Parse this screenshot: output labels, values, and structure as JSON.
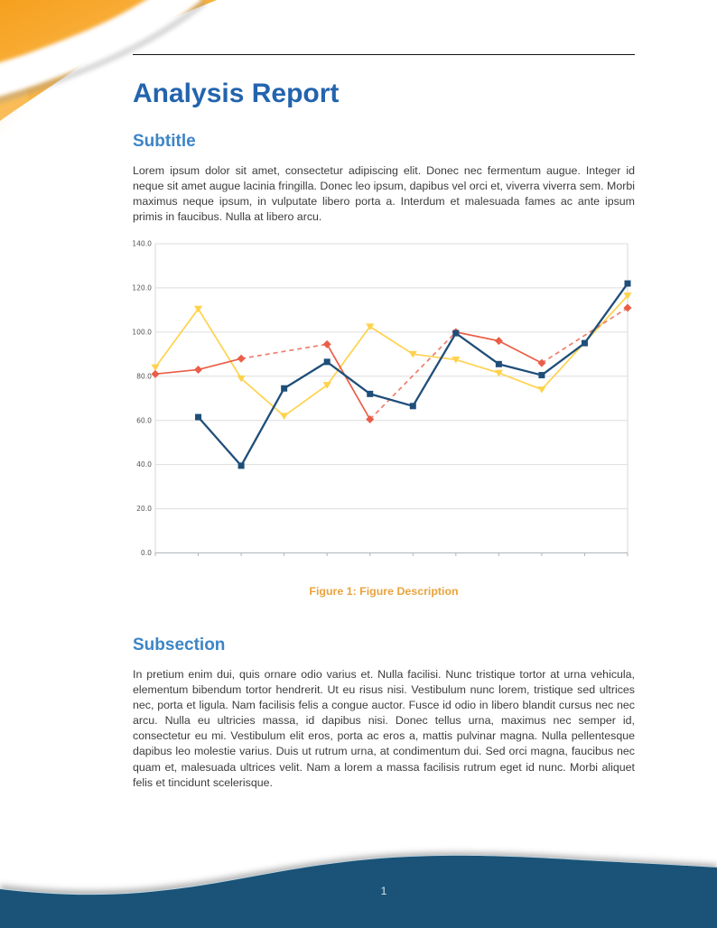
{
  "theme": {
    "title_blue": "#2364AE",
    "heading_blue": "#3C85C7",
    "caption_orange": "#E8A33D",
    "footer_blue": "#1A5377",
    "decoration_orange": "#F6A01E",
    "decoration_orange_light": "#FBC35F"
  },
  "header": {
    "title": "Analysis Report"
  },
  "sections": [
    {
      "heading": "Subtitle",
      "body": "Lorem ipsum dolor sit amet, consectetur adipiscing elit. Donec nec fermentum augue. Integer id neque sit amet augue lacinia fringilla. Donec leo ipsum, dapibus vel orci et, viverra viverra sem. Morbi maximus neque ipsum, in vulputate libero porta a. Interdum et malesuada fames ac ante ipsum primis in faucibus. Nulla at libero arcu."
    },
    {
      "heading": "Subsection",
      "body": "In pretium enim dui, quis ornare odio varius et. Nulla facilisi. Nunc tristique tortor at urna vehicula, elementum bibendum tortor hendrerit. Ut eu risus nisi. Vestibulum nunc lorem, tristique sed ultrices nec, porta et ligula. Nam facilisis felis a congue auctor. Fusce id odio in libero blandit cursus nec nec arcu. Nulla eu ultricies massa, id dapibus nisi. Donec tellus urna, maximus nec semper id, consectetur eu mi. Vestibulum elit eros, porta ac eros a, mattis pulvinar magna. Nulla pellentesque dapibus leo molestie varius. Duis ut rutrum urna, at condimentum dui. Sed orci magna, faucibus nec quam et, malesuada ultrices velit. Nam a lorem a massa facilisis rutrum eget id nunc. Morbi aliquet felis et tincidunt scelerisque."
    }
  ],
  "figure": {
    "caption_label": "Figure 1:",
    "caption_text": "Figure Description"
  },
  "footer": {
    "page_number": "1"
  },
  "chart_data": {
    "type": "line",
    "x": [
      1,
      2,
      3,
      4,
      5,
      6,
      7,
      8,
      9,
      10,
      11,
      12
    ],
    "x_tick_labels": [],
    "y_ticks": [
      0,
      20,
      40,
      60,
      80,
      100,
      120,
      140
    ],
    "y_tick_labels": [
      "0.0",
      "20.0",
      "40.0",
      "60.0",
      "80.0",
      "100.0",
      "120.0",
      "140.0"
    ],
    "ylim": [
      0,
      140
    ],
    "grid": "horizontal",
    "legend": "none",
    "title": "",
    "series": [
      {
        "name": "yellow-triangle-series",
        "color": "#FFD24D",
        "marker": "triangle-down",
        "line": "solid",
        "gap_line": "solid",
        "width": 1.7,
        "values": [
          84,
          110.5,
          79,
          62,
          76,
          102.5,
          90,
          87.5,
          81.5,
          74,
          null,
          116.5
        ]
      },
      {
        "name": "red-diamond-series",
        "color": "#EA5E47",
        "marker": "diamond",
        "line": "solid",
        "gap_line": "dashed",
        "width": 1.7,
        "values": [
          81,
          83,
          88,
          null,
          94.5,
          60.5,
          null,
          100,
          96,
          86,
          null,
          111
        ]
      },
      {
        "name": "blue-square-series",
        "color": "#1F4E79",
        "marker": "square",
        "line": "solid",
        "gap_line": "none",
        "width": 2.3,
        "values": [
          null,
          61.5,
          39.5,
          74.5,
          86.5,
          72,
          66.5,
          99.5,
          85.5,
          80.5,
          95,
          122
        ]
      }
    ]
  }
}
